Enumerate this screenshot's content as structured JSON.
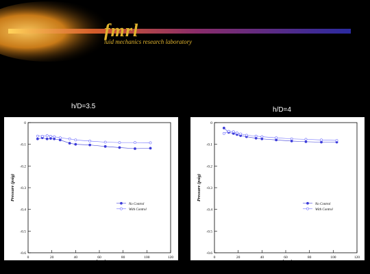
{
  "header": {
    "logo_main": "fmrl",
    "logo_sub": "luid mechanics research laboratory",
    "colors": {
      "glow": "#e8a22a",
      "bar_start": "#f2b23a",
      "bar_end": "#3a2ca8",
      "logo_text": "#e0b32e"
    }
  },
  "panels": [
    {
      "title": "h/D=3.5"
    },
    {
      "title": "h/D=4"
    }
  ],
  "chart_data": [
    {
      "type": "line",
      "title": "h/D=3.5",
      "xlabel": "r (mm)",
      "ylabel": "Pressure (psig)",
      "xlim": [
        0,
        120
      ],
      "ylim": [
        -0.6,
        0
      ],
      "xticks": [
        "0",
        "20",
        "40",
        "60",
        "80",
        "100",
        "120"
      ],
      "yticks": [
        "0",
        "-0.1",
        "-0.2",
        "-0.3",
        "-0.4",
        "-0.5",
        "-0.6"
      ],
      "legend": "bottom-right",
      "series": [
        {
          "name": "No Control",
          "marker": "filled",
          "color": "#3b3bd8",
          "x": [
            8,
            12,
            16,
            19,
            22,
            27,
            35,
            40,
            52,
            65,
            77,
            90,
            103
          ],
          "y": [
            -0.075,
            -0.07,
            -0.075,
            -0.073,
            -0.075,
            -0.08,
            -0.095,
            -0.1,
            -0.103,
            -0.11,
            -0.115,
            -0.12,
            -0.118
          ]
        },
        {
          "name": "With Control",
          "marker": "open",
          "color": "#6a6aff",
          "x": [
            8,
            12,
            16,
            19,
            22,
            27,
            35,
            40,
            52,
            65,
            77,
            90,
            103
          ],
          "y": [
            -0.062,
            -0.063,
            -0.06,
            -0.063,
            -0.065,
            -0.07,
            -0.075,
            -0.08,
            -0.085,
            -0.09,
            -0.092,
            -0.092,
            -0.093
          ]
        }
      ]
    },
    {
      "type": "line",
      "title": "h/D=4",
      "xlabel": "r (mm)",
      "ylabel": "Pressure (psig)",
      "xlim": [
        0,
        120
      ],
      "ylim": [
        -0.6,
        0
      ],
      "xticks": [
        "0",
        "20",
        "40",
        "60",
        "80",
        "100",
        "120"
      ],
      "yticks": [
        "0",
        "-0.1",
        "-0.2",
        "-0.3",
        "-0.4",
        "-0.5",
        "-0.6"
      ],
      "legend": "bottom-right",
      "series": [
        {
          "name": "No Control",
          "marker": "filled",
          "color": "#3b3bd8",
          "x": [
            8,
            12,
            16,
            19,
            22,
            27,
            35,
            40,
            52,
            65,
            77,
            90,
            103
          ],
          "y": [
            -0.025,
            -0.045,
            -0.05,
            -0.055,
            -0.06,
            -0.065,
            -0.072,
            -0.075,
            -0.08,
            -0.085,
            -0.088,
            -0.09,
            -0.09
          ]
        },
        {
          "name": "With Control",
          "marker": "open",
          "color": "#6a6aff",
          "x": [
            8,
            12,
            16,
            19,
            22,
            27,
            35,
            40,
            52,
            65,
            77,
            90,
            103
          ],
          "y": [
            -0.05,
            -0.04,
            -0.042,
            -0.048,
            -0.052,
            -0.058,
            -0.062,
            -0.065,
            -0.07,
            -0.075,
            -0.077,
            -0.08,
            -0.082
          ]
        }
      ]
    }
  ]
}
